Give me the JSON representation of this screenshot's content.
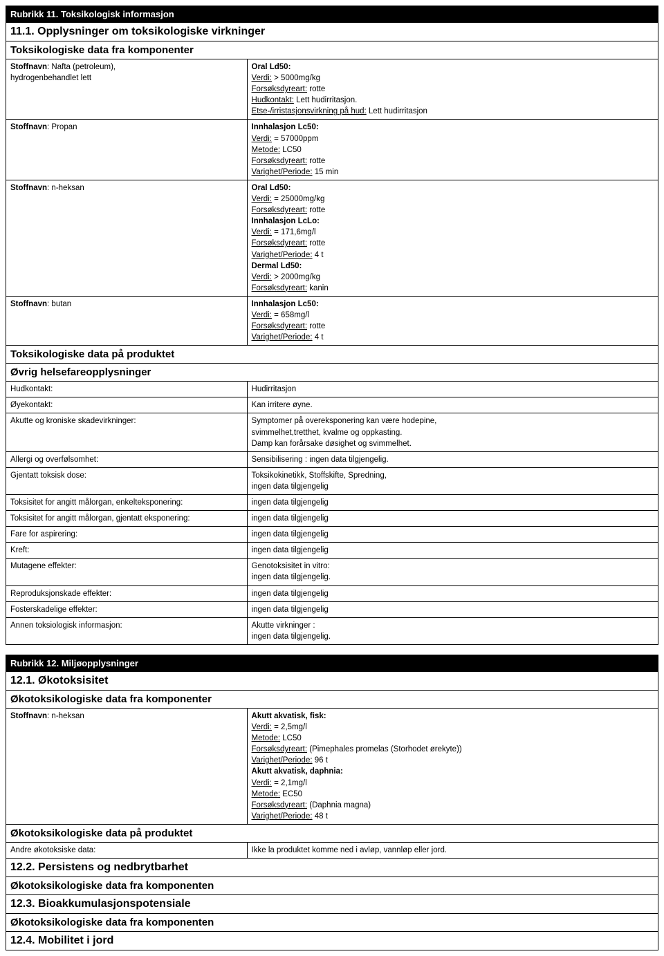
{
  "section11": {
    "header": "Rubrikk 11. Toksikologisk informasjon",
    "sub1": "11.1. Opplysninger om toksikologiske virkninger",
    "sub2": "Toksikologiske data fra komponenter",
    "rows": [
      {
        "left": [
          {
            "b": true,
            "u": false,
            "t": "Stoffnavn"
          },
          {
            "t": ": Nafta (petroleum),"
          },
          {
            "br": true
          },
          {
            "t": "hydrogenbehandlet lett"
          }
        ],
        "right": [
          {
            "b": true,
            "t": "Oral Ld50:"
          },
          {
            "br": true
          },
          {
            "u": true,
            "t": "Verdi:"
          },
          {
            "t": " > 5000mg/kg"
          },
          {
            "br": true
          },
          {
            "u": true,
            "t": "Forsøksdyreart:"
          },
          {
            "t": " rotte"
          },
          {
            "br": true
          },
          {
            "u": true,
            "t": "Hudkontakt:"
          },
          {
            "t": " Lett hudirritasjon."
          },
          {
            "br": true
          },
          {
            "u": true,
            "t": "Etse-/irristasjonsvirkning på hud:"
          },
          {
            "t": " Lett hudirritasjon"
          }
        ]
      },
      {
        "left": [
          {
            "b": true,
            "t": "Stoffnavn"
          },
          {
            "t": ": Propan"
          }
        ],
        "right": [
          {
            "b": true,
            "t": "Innhalasjon Lc50:"
          },
          {
            "br": true
          },
          {
            "u": true,
            "t": "Verdi:"
          },
          {
            "t": " = 57000ppm"
          },
          {
            "br": true
          },
          {
            "u": true,
            "t": "Metode:"
          },
          {
            "t": " LC50"
          },
          {
            "br": true
          },
          {
            "u": true,
            "t": "Forsøksdyreart:"
          },
          {
            "t": " rotte"
          },
          {
            "br": true
          },
          {
            "u": true,
            "t": "Varighet/Periode:"
          },
          {
            "t": " 15 min"
          }
        ]
      },
      {
        "left": [
          {
            "b": true,
            "t": "Stoffnavn"
          },
          {
            "t": ": n-heksan"
          }
        ],
        "right": [
          {
            "b": true,
            "t": "Oral Ld50:"
          },
          {
            "br": true
          },
          {
            "u": true,
            "t": "Verdi:"
          },
          {
            "t": " = 25000mg/kg"
          },
          {
            "br": true
          },
          {
            "u": true,
            "t": "Forsøksdyreart:"
          },
          {
            "t": " rotte"
          },
          {
            "br": true
          },
          {
            "b": true,
            "t": "Innhalasjon LcLo:"
          },
          {
            "br": true
          },
          {
            "u": true,
            "t": "Verdi:"
          },
          {
            "t": " = 171,6mg/l"
          },
          {
            "br": true
          },
          {
            "u": true,
            "t": "Forsøksdyreart:"
          },
          {
            "t": " rotte"
          },
          {
            "br": true
          },
          {
            "u": true,
            "t": "Varighet/Periode:"
          },
          {
            "t": " 4 t"
          },
          {
            "br": true
          },
          {
            "b": true,
            "t": "Dermal Ld50:"
          },
          {
            "br": true
          },
          {
            "u": true,
            "t": "Verdi:"
          },
          {
            "t": " > 2000mg/kg"
          },
          {
            "br": true
          },
          {
            "u": true,
            "t": "Forsøksdyreart:"
          },
          {
            "t": " kanin"
          }
        ]
      },
      {
        "left": [
          {
            "b": true,
            "t": "Stoffnavn"
          },
          {
            "t": ": butan"
          }
        ],
        "right": [
          {
            "b": true,
            "t": "Innhalasjon Lc50:"
          },
          {
            "br": true
          },
          {
            "u": true,
            "t": "Verdi:"
          },
          {
            "t": " = 658mg/l"
          },
          {
            "br": true
          },
          {
            "u": true,
            "t": "Forsøksdyreart:"
          },
          {
            "t": " rotte"
          },
          {
            "br": true
          },
          {
            "u": true,
            "t": "Varighet/Periode:"
          },
          {
            "t": " 4 t"
          }
        ]
      }
    ],
    "sub3": "Toksikologiske data på produktet",
    "sub4": "Øvrig helsefareopplysninger",
    "health_rows": [
      {
        "l": "Hudkontakt:",
        "r": [
          {
            "t": "Hudirritasjon"
          }
        ]
      },
      {
        "l": "Øyekontakt:",
        "r": [
          {
            "t": "Kan irritere øyne."
          }
        ]
      },
      {
        "l": "Akutte og kroniske skadevirkninger:",
        "r": [
          {
            "t": "Symptomer på overeksponering kan være hodepine,"
          },
          {
            "br": true
          },
          {
            "t": "svimmelhet,tretthet, kvalme og oppkasting."
          },
          {
            "br": true
          },
          {
            "t": "Damp kan forårsake døsighet og svimmelhet."
          }
        ]
      },
      {
        "l": "Allergi og overfølsomhet:",
        "r": [
          {
            "t": "Sensibilisering : ingen data tilgjengelig."
          }
        ]
      },
      {
        "l": "Gjentatt toksisk dose:",
        "r": [
          {
            "t": "Toksikokinetikk, Stoffskifte, Spredning,"
          },
          {
            "br": true
          },
          {
            "t": "ingen data tilgjengelig"
          }
        ]
      },
      {
        "l": "Toksisitet for angitt målorgan, enkelteksponering:",
        "r": [
          {
            "t": "ingen data tilgjengelig"
          }
        ]
      },
      {
        "l": "Toksisitet for angitt målorgan, gjentatt eksponering:",
        "r": [
          {
            "t": "ingen data tilgjengelig"
          }
        ]
      },
      {
        "l": "Fare for aspirering:",
        "r": [
          {
            "t": "ingen data tilgjengelig"
          }
        ]
      },
      {
        "l": "Kreft:",
        "r": [
          {
            "t": "ingen data tilgjengelig"
          }
        ]
      },
      {
        "l": "Mutagene effekter:",
        "r": [
          {
            "t": "Genotoksisitet in vitro:"
          },
          {
            "br": true
          },
          {
            "t": "ingen data tilgjengelig."
          }
        ]
      },
      {
        "l": "Reproduksjonskade effekter:",
        "r": [
          {
            "t": "ingen data tilgjengelig"
          }
        ]
      },
      {
        "l": "Fosterskadelige effekter:",
        "r": [
          {
            "t": "ingen data tilgjengelig"
          }
        ]
      },
      {
        "l": "Annen toksiologisk informasjon:",
        "r": [
          {
            "t": "Akutte virkninger :"
          },
          {
            "br": true
          },
          {
            "t": "ingen data tilgjengelig."
          }
        ]
      }
    ]
  },
  "section12": {
    "header": "Rubrikk 12. Miljøopplysninger",
    "sub1": "12.1. Økotoksisitet",
    "sub2": "Økotoksikologiske data fra komponenter",
    "eco_row": {
      "left": [
        {
          "b": true,
          "t": "Stoffnavn"
        },
        {
          "t": ": n-heksan"
        }
      ],
      "right": [
        {
          "b": true,
          "t": "Akutt akvatisk, fisk:"
        },
        {
          "br": true
        },
        {
          "u": true,
          "t": "Verdi:"
        },
        {
          "t": " = 2,5mg/l"
        },
        {
          "br": true
        },
        {
          "u": true,
          "t": "Metode:"
        },
        {
          "t": " LC50"
        },
        {
          "br": true
        },
        {
          "u": true,
          "t": "Forsøksdyreart:"
        },
        {
          "t": " (Pimephales promelas (Storhodet ørekyte))"
        },
        {
          "br": true
        },
        {
          "u": true,
          "t": "Varighet/Periode:"
        },
        {
          "t": " 96 t"
        },
        {
          "br": true
        },
        {
          "b": true,
          "t": "Akutt akvatisk, daphnia:"
        },
        {
          "br": true
        },
        {
          "u": true,
          "t": "Verdi:"
        },
        {
          "t": " = 2,1mg/l"
        },
        {
          "br": true
        },
        {
          "u": true,
          "t": "Metode:"
        },
        {
          "t": " EC50"
        },
        {
          "br": true
        },
        {
          "u": true,
          "t": "Forsøksdyreart:"
        },
        {
          "t": " (Daphnia magna)"
        },
        {
          "br": true
        },
        {
          "u": true,
          "t": "Varighet/Periode:"
        },
        {
          "t": " 48 t"
        }
      ]
    },
    "sub3": "Økotoksikologiske data på produktet",
    "prod_row": {
      "l": "Andre økotoksiske data:",
      "r": "Ikke la produktet komme ned i avløp, vannløp eller jord."
    },
    "sub4": "12.2. Persistens og nedbrytbarhet",
    "sub5": "Økotoksikologiske data fra komponenten",
    "sub6": "12.3. Bioakkumulasjonspotensiale",
    "sub7": "Økotoksikologiske data fra komponenten",
    "sub8": "12.4. Mobilitet i jord"
  }
}
